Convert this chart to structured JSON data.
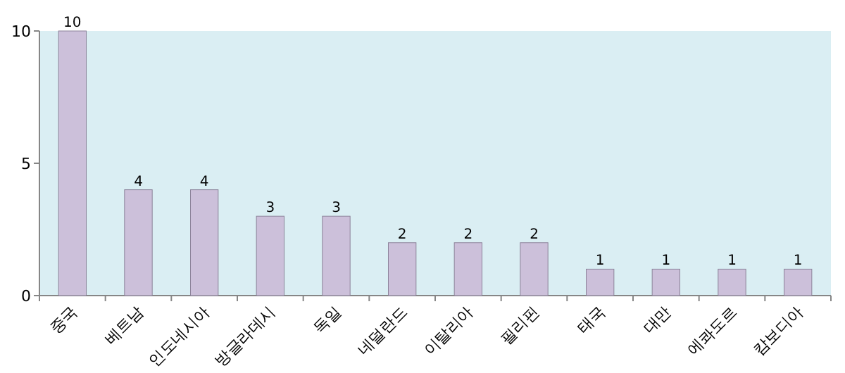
{
  "chart_data": {
    "type": "bar",
    "categories": [
      "중국",
      "베트남",
      "인도네시아",
      "방글라데시",
      "독일",
      "네덜란드",
      "이탈리아",
      "필리핀",
      "태국",
      "대만",
      "에콰도르",
      "캄보디아"
    ],
    "values": [
      10,
      4,
      4,
      3,
      3,
      2,
      2,
      2,
      1,
      1,
      1,
      1
    ],
    "color": "#ccc0da",
    "ylim": [
      0,
      10
    ],
    "yticks": [
      0,
      5,
      10
    ],
    "data_labels": true
  }
}
